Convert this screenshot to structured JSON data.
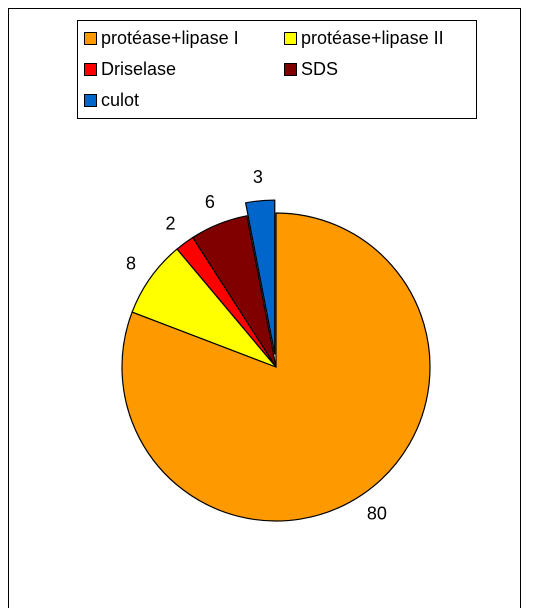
{
  "chart_data": {
    "type": "pie",
    "title": "",
    "slices": [
      {
        "name": "protéase+lipase I",
        "value": 80,
        "label": "80",
        "color": "#FF9900"
      },
      {
        "name": "protéase+lipase II",
        "value": 8,
        "label": "8",
        "color": "#FFFF00"
      },
      {
        "name": "Driselase",
        "value": 2,
        "label": "2",
        "color": "#FF0000"
      },
      {
        "name": "SDS",
        "value": 6,
        "label": "6",
        "color": "#800000"
      },
      {
        "name": "culot",
        "value": 3,
        "label": "3",
        "color": "#0066CC",
        "exploded": true
      }
    ],
    "start_angle_deg": 0,
    "direction": "clockwise-from-top",
    "legend_position": "top",
    "data_labels": "values-outside"
  }
}
